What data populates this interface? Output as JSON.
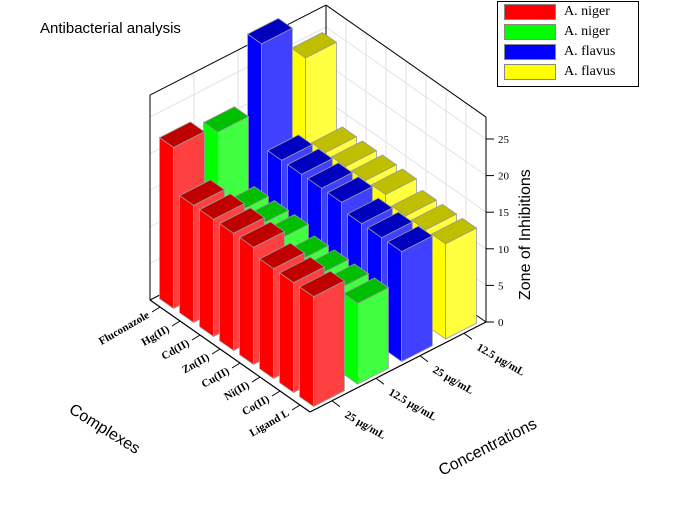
{
  "chart_data": {
    "type": "bar3d",
    "title": "Antibacterial analysis",
    "xlabel": "Complexes",
    "ylabel": "Concentrations",
    "zlabel": "Zone of Inhibitions",
    "categories": [
      "Fluconazole",
      "Hg(II)",
      "Cd(II)",
      "Zn(II)",
      "Cu(II)",
      "Ni(II)",
      "Co(II)",
      "Ligand L"
    ],
    "concentrations": [
      "25 µg/mL",
      "12.5 µg/mL",
      "25 µg/mL",
      "12.5 µg/mL"
    ],
    "zlim": [
      0,
      25
    ],
    "zticks": [
      0,
      5,
      10,
      15,
      20,
      25
    ],
    "grid": true,
    "legend_position": "top-right",
    "series": [
      {
        "name": "A. niger",
        "color": "#ff0000",
        "values": [
          22,
          16,
          16,
          16,
          16,
          15,
          15,
          15
        ]
      },
      {
        "name": "A. niger",
        "color": "#00ff00",
        "values": [
          21,
          12,
          12,
          12,
          11,
          11,
          11,
          11
        ]
      },
      {
        "name": "A. flavus",
        "color": "#0000ff",
        "values": [
          30,
          16,
          16,
          16,
          16,
          15,
          15,
          15
        ]
      },
      {
        "name": "A. flavus",
        "color": "#ffff00",
        "values": [
          25,
          14,
          14,
          14,
          14,
          13,
          13,
          13
        ]
      }
    ]
  }
}
